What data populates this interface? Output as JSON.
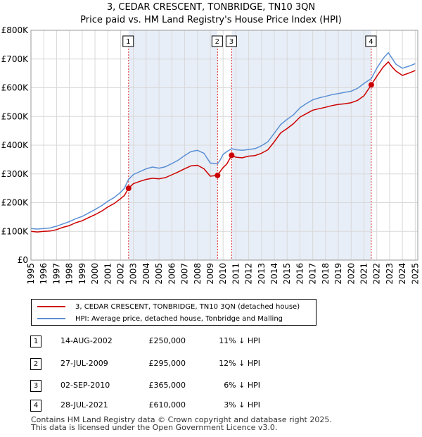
{
  "title": {
    "line1": "3, CEDAR CRESCENT, TONBRIDGE, TN10 3QN",
    "line2": "Price paid vs. HM Land Registry's House Price Index (HPI)"
  },
  "colors": {
    "property": "#cc0000",
    "hpi": "#5b8fd4",
    "shade": "#e8eef7",
    "marker_line": "#e03030"
  },
  "chart_data": {
    "type": "line",
    "title": "Price paid vs. HM Land Registry's House Price Index (HPI)",
    "xlabel": "",
    "ylabel": "",
    "xlim": [
      1995,
      2025.2
    ],
    "ylim": [
      0,
      800000
    ],
    "y_ticks": [
      0,
      100000,
      200000,
      300000,
      400000,
      500000,
      600000,
      700000,
      800000
    ],
    "y_tick_labels": [
      "£0",
      "£100K",
      "£200K",
      "£300K",
      "£400K",
      "£500K",
      "£600K",
      "£700K",
      "£800K"
    ],
    "x_ticks": [
      1995,
      1996,
      1997,
      1998,
      1999,
      2000,
      2001,
      2002,
      2003,
      2004,
      2005,
      2006,
      2007,
      2008,
      2009,
      2010,
      2011,
      2012,
      2013,
      2014,
      2015,
      2016,
      2017,
      2018,
      2019,
      2020,
      2021,
      2022,
      2023,
      2024,
      2025
    ],
    "grid": true,
    "legend_position": "below",
    "shaded_regions": [
      [
        2002.62,
        2009.57
      ],
      [
        2010.67,
        2021.57
      ]
    ],
    "series": [
      {
        "name": "3, CEDAR CRESCENT, TONBRIDGE, TN10 3QN (detached house)",
        "color": "#cc0000",
        "points": [
          [
            1995.0,
            100000
          ],
          [
            1995.5,
            98000
          ],
          [
            1996.0,
            100000
          ],
          [
            1996.5,
            101000
          ],
          [
            1997.0,
            106000
          ],
          [
            1997.5,
            114000
          ],
          [
            1998.0,
            120000
          ],
          [
            1998.5,
            130000
          ],
          [
            1999.0,
            137000
          ],
          [
            1999.5,
            148000
          ],
          [
            2000.0,
            158000
          ],
          [
            2000.5,
            170000
          ],
          [
            2001.0,
            185000
          ],
          [
            2001.5,
            197000
          ],
          [
            2002.0,
            214000
          ],
          [
            2002.3,
            225000
          ],
          [
            2002.62,
            250000
          ],
          [
            2003.0,
            266000
          ],
          [
            2003.5,
            274000
          ],
          [
            2004.0,
            281000
          ],
          [
            2004.5,
            285000
          ],
          [
            2005.0,
            283000
          ],
          [
            2005.5,
            287000
          ],
          [
            2006.0,
            297000
          ],
          [
            2006.5,
            307000
          ],
          [
            2007.0,
            318000
          ],
          [
            2007.5,
            328000
          ],
          [
            2008.0,
            330000
          ],
          [
            2008.5,
            318000
          ],
          [
            2009.0,
            292000
          ],
          [
            2009.57,
            295000
          ],
          [
            2009.8,
            310000
          ],
          [
            2010.0,
            322000
          ],
          [
            2010.3,
            335000
          ],
          [
            2010.67,
            365000
          ],
          [
            2011.0,
            358000
          ],
          [
            2011.5,
            356000
          ],
          [
            2012.0,
            362000
          ],
          [
            2012.5,
            364000
          ],
          [
            2013.0,
            372000
          ],
          [
            2013.5,
            384000
          ],
          [
            2014.0,
            412000
          ],
          [
            2014.5,
            443000
          ],
          [
            2015.0,
            458000
          ],
          [
            2015.5,
            475000
          ],
          [
            2016.0,
            498000
          ],
          [
            2016.5,
            510000
          ],
          [
            2017.0,
            522000
          ],
          [
            2017.5,
            527000
          ],
          [
            2018.0,
            532000
          ],
          [
            2018.5,
            538000
          ],
          [
            2019.0,
            542000
          ],
          [
            2019.5,
            544000
          ],
          [
            2020.0,
            548000
          ],
          [
            2020.5,
            556000
          ],
          [
            2021.0,
            572000
          ],
          [
            2021.57,
            610000
          ],
          [
            2022.0,
            640000
          ],
          [
            2022.5,
            672000
          ],
          [
            2022.9,
            690000
          ],
          [
            2023.2,
            672000
          ],
          [
            2023.5,
            658000
          ],
          [
            2024.0,
            643000
          ],
          [
            2024.5,
            651000
          ],
          [
            2025.0,
            660000
          ]
        ]
      },
      {
        "name": "HPI: Average price, detached house, Tonbridge and Malling",
        "color": "#5b8fd4",
        "points": [
          [
            1995.0,
            110000
          ],
          [
            1995.5,
            108000
          ],
          [
            1996.0,
            110000
          ],
          [
            1996.5,
            112000
          ],
          [
            1997.0,
            118000
          ],
          [
            1997.5,
            126000
          ],
          [
            1998.0,
            134000
          ],
          [
            1998.5,
            144000
          ],
          [
            1999.0,
            152000
          ],
          [
            1999.5,
            164000
          ],
          [
            2000.0,
            176000
          ],
          [
            2000.5,
            189000
          ],
          [
            2001.0,
            205000
          ],
          [
            2001.5,
            218000
          ],
          [
            2002.0,
            236000
          ],
          [
            2002.3,
            250000
          ],
          [
            2002.62,
            281000
          ],
          [
            2003.0,
            298000
          ],
          [
            2003.5,
            308000
          ],
          [
            2004.0,
            318000
          ],
          [
            2004.5,
            324000
          ],
          [
            2005.0,
            320000
          ],
          [
            2005.5,
            325000
          ],
          [
            2006.0,
            336000
          ],
          [
            2006.5,
            348000
          ],
          [
            2007.0,
            364000
          ],
          [
            2007.5,
            378000
          ],
          [
            2008.0,
            382000
          ],
          [
            2008.5,
            372000
          ],
          [
            2009.0,
            338000
          ],
          [
            2009.57,
            335000
          ],
          [
            2009.8,
            350000
          ],
          [
            2010.0,
            368000
          ],
          [
            2010.3,
            378000
          ],
          [
            2010.67,
            388000
          ],
          [
            2011.0,
            384000
          ],
          [
            2011.5,
            382000
          ],
          [
            2012.0,
            385000
          ],
          [
            2012.5,
            388000
          ],
          [
            2013.0,
            398000
          ],
          [
            2013.5,
            412000
          ],
          [
            2014.0,
            442000
          ],
          [
            2014.5,
            472000
          ],
          [
            2015.0,
            490000
          ],
          [
            2015.5,
            506000
          ],
          [
            2016.0,
            530000
          ],
          [
            2016.5,
            545000
          ],
          [
            2017.0,
            558000
          ],
          [
            2017.5,
            565000
          ],
          [
            2018.0,
            570000
          ],
          [
            2018.5,
            576000
          ],
          [
            2019.0,
            580000
          ],
          [
            2019.5,
            584000
          ],
          [
            2020.0,
            588000
          ],
          [
            2020.5,
            598000
          ],
          [
            2021.0,
            615000
          ],
          [
            2021.57,
            632000
          ],
          [
            2022.0,
            668000
          ],
          [
            2022.5,
            702000
          ],
          [
            2022.9,
            722000
          ],
          [
            2023.2,
            702000
          ],
          [
            2023.5,
            682000
          ],
          [
            2024.0,
            668000
          ],
          [
            2024.5,
            675000
          ],
          [
            2025.0,
            684000
          ]
        ]
      }
    ],
    "sales": [
      {
        "id": "1",
        "x": 2002.62,
        "y": 250000
      },
      {
        "id": "2",
        "x": 2009.57,
        "y": 295000
      },
      {
        "id": "3",
        "x": 2010.67,
        "y": 365000
      },
      {
        "id": "4",
        "x": 2021.57,
        "y": 610000
      }
    ]
  },
  "legend": {
    "property": "3, CEDAR CRESCENT, TONBRIDGE, TN10 3QN (detached house)",
    "hpi": "HPI: Average price, detached house, Tonbridge and Malling"
  },
  "sales_table": [
    {
      "num": "1",
      "date": "14-AUG-2002",
      "price": "£250,000",
      "hpi": "11% ↓ HPI"
    },
    {
      "num": "2",
      "date": "27-JUL-2009",
      "price": "£295,000",
      "hpi": "12% ↓ HPI"
    },
    {
      "num": "3",
      "date": "02-SEP-2010",
      "price": "£365,000",
      "hpi": "6% ↓ HPI"
    },
    {
      "num": "4",
      "date": "28-JUL-2021",
      "price": "£610,000",
      "hpi": "3% ↓ HPI"
    }
  ],
  "footer": {
    "line1": "Contains HM Land Registry data © Crown copyright and database right 2025.",
    "line2": "This data is licensed under the Open Government Licence v3.0."
  }
}
